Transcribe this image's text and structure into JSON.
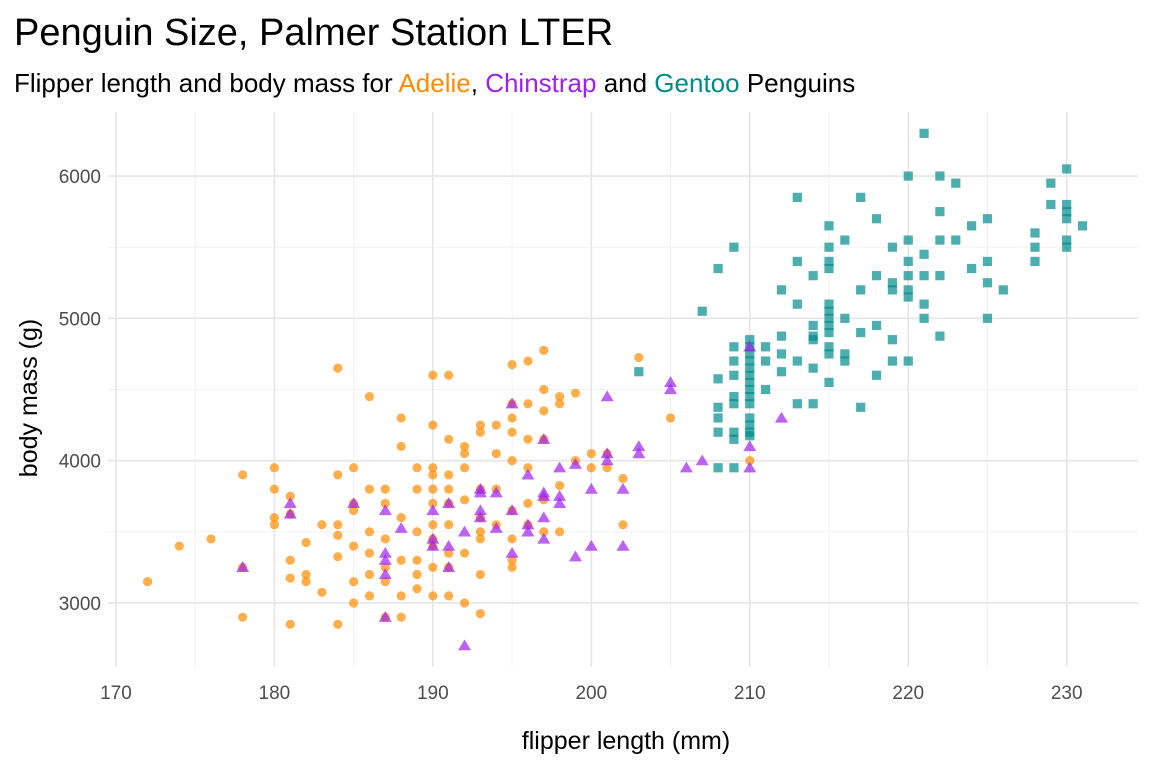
{
  "chart_data": {
    "type": "scatter",
    "title": "Penguin Size, Palmer Station LTER",
    "subtitle": {
      "prefix": "Flipper length and body mass for ",
      "sp1": "Adelie",
      "sep1": ", ",
      "sp2": "Chinstrap",
      "sep2": " and ",
      "sp3": "Gentoo",
      "suffix": " Penguins"
    },
    "xlabel": "flipper length (mm)",
    "ylabel": "body mass (g)",
    "xlim": [
      169.5,
      234.5
    ],
    "ylim": [
      2550,
      6450
    ],
    "xticks": [
      170,
      180,
      190,
      200,
      210,
      220,
      230
    ],
    "yticks": [
      3000,
      4000,
      5000,
      6000
    ],
    "grid": true,
    "legend": "none",
    "series": [
      {
        "name": "Adelie",
        "color": "#FF8C00",
        "shape": "circle",
        "points": [
          [
            172,
            3150
          ],
          [
            174,
            3400
          ],
          [
            176,
            3450
          ],
          [
            178,
            3900
          ],
          [
            178,
            2900
          ],
          [
            178,
            3250
          ],
          [
            180,
            3950
          ],
          [
            180,
            3800
          ],
          [
            180,
            3600
          ],
          [
            180,
            3550
          ],
          [
            181,
            3750
          ],
          [
            181,
            3625
          ],
          [
            181,
            3300
          ],
          [
            181,
            3175
          ],
          [
            181,
            2850
          ],
          [
            182,
            3425
          ],
          [
            182,
            3200
          ],
          [
            182,
            3150
          ],
          [
            183,
            3550
          ],
          [
            183,
            3075
          ],
          [
            184,
            4650
          ],
          [
            184,
            3900
          ],
          [
            184,
            3550
          ],
          [
            184,
            3475
          ],
          [
            184,
            3325
          ],
          [
            184,
            2850
          ],
          [
            185,
            3950
          ],
          [
            185,
            3700
          ],
          [
            185,
            3650
          ],
          [
            185,
            3400
          ],
          [
            185,
            3150
          ],
          [
            185,
            3000
          ],
          [
            186,
            4450
          ],
          [
            186,
            3800
          ],
          [
            186,
            3500
          ],
          [
            186,
            3350
          ],
          [
            186,
            3200
          ],
          [
            186,
            3050
          ],
          [
            187,
            3800
          ],
          [
            187,
            3700
          ],
          [
            187,
            3450
          ],
          [
            187,
            3250
          ],
          [
            187,
            3150
          ],
          [
            187,
            2900
          ],
          [
            188,
            4300
          ],
          [
            188,
            4100
          ],
          [
            188,
            3600
          ],
          [
            188,
            3300
          ],
          [
            188,
            3050
          ],
          [
            188,
            2900
          ],
          [
            189,
            3950
          ],
          [
            189,
            3800
          ],
          [
            189,
            3500
          ],
          [
            189,
            3300
          ],
          [
            189,
            3200
          ],
          [
            189,
            3100
          ],
          [
            190,
            4600
          ],
          [
            190,
            4250
          ],
          [
            190,
            3950
          ],
          [
            190,
            3900
          ],
          [
            190,
            3800
          ],
          [
            190,
            3700
          ],
          [
            190,
            3550
          ],
          [
            190,
            3450
          ],
          [
            190,
            3400
          ],
          [
            190,
            3250
          ],
          [
            190,
            3050
          ],
          [
            191,
            4600
          ],
          [
            191,
            4150
          ],
          [
            191,
            3900
          ],
          [
            191,
            3800
          ],
          [
            191,
            3700
          ],
          [
            191,
            3550
          ],
          [
            191,
            3350
          ],
          [
            191,
            3250
          ],
          [
            191,
            3050
          ],
          [
            192,
            4100
          ],
          [
            192,
            4050
          ],
          [
            192,
            3950
          ],
          [
            192,
            3725
          ],
          [
            192,
            3350
          ],
          [
            192,
            3000
          ],
          [
            193,
            4250
          ],
          [
            193,
            4200
          ],
          [
            193,
            3800
          ],
          [
            193,
            3600
          ],
          [
            193,
            3500
          ],
          [
            193,
            3450
          ],
          [
            193,
            3200
          ],
          [
            193,
            2925
          ],
          [
            194,
            4250
          ],
          [
            194,
            4050
          ],
          [
            194,
            3800
          ],
          [
            194,
            3550
          ],
          [
            195,
            4675
          ],
          [
            195,
            4400
          ],
          [
            195,
            4300
          ],
          [
            195,
            4200
          ],
          [
            195,
            4000
          ],
          [
            195,
            3650
          ],
          [
            195,
            3450
          ],
          [
            195,
            3300
          ],
          [
            195,
            3250
          ],
          [
            196,
            4700
          ],
          [
            196,
            4400
          ],
          [
            196,
            4150
          ],
          [
            196,
            3950
          ],
          [
            196,
            3700
          ],
          [
            196,
            3550
          ],
          [
            197,
            4775
          ],
          [
            197,
            4500
          ],
          [
            197,
            4350
          ],
          [
            197,
            4150
          ],
          [
            197,
            3725
          ],
          [
            197,
            3500
          ],
          [
            198,
            4450
          ],
          [
            198,
            4400
          ],
          [
            198,
            3825
          ],
          [
            198,
            3500
          ],
          [
            199,
            4475
          ],
          [
            199,
            4000
          ],
          [
            200,
            4050
          ],
          [
            200,
            3950
          ],
          [
            201,
            4050
          ],
          [
            201,
            3950
          ],
          [
            202,
            3875
          ],
          [
            202,
            3550
          ],
          [
            203,
            4725
          ],
          [
            205,
            4300
          ],
          [
            210,
            4000
          ]
        ]
      },
      {
        "name": "Chinstrap",
        "color": "#A020F0",
        "shape": "triangle",
        "points": [
          [
            178,
            3250
          ],
          [
            181,
            3700
          ],
          [
            181,
            3625
          ],
          [
            185,
            3700
          ],
          [
            187,
            3650
          ],
          [
            187,
            3350
          ],
          [
            187,
            3300
          ],
          [
            187,
            3200
          ],
          [
            187,
            2900
          ],
          [
            188,
            3525
          ],
          [
            190,
            3650
          ],
          [
            190,
            3450
          ],
          [
            190,
            3400
          ],
          [
            191,
            3700
          ],
          [
            191,
            3400
          ],
          [
            191,
            3250
          ],
          [
            192,
            3500
          ],
          [
            192,
            2700
          ],
          [
            193,
            3800
          ],
          [
            193,
            3775
          ],
          [
            193,
            3650
          ],
          [
            193,
            3600
          ],
          [
            194,
            3775
          ],
          [
            194,
            3525
          ],
          [
            195,
            4400
          ],
          [
            195,
            3650
          ],
          [
            195,
            3350
          ],
          [
            196,
            3900
          ],
          [
            196,
            3550
          ],
          [
            196,
            3500
          ],
          [
            197,
            4150
          ],
          [
            197,
            3775
          ],
          [
            197,
            3750
          ],
          [
            197,
            3600
          ],
          [
            197,
            3450
          ],
          [
            198,
            3950
          ],
          [
            198,
            3750
          ],
          [
            198,
            3700
          ],
          [
            199,
            3975
          ],
          [
            199,
            3325
          ],
          [
            200,
            3800
          ],
          [
            200,
            3400
          ],
          [
            201,
            4450
          ],
          [
            201,
            4050
          ],
          [
            201,
            4000
          ],
          [
            202,
            3800
          ],
          [
            202,
            3400
          ],
          [
            203,
            4100
          ],
          [
            203,
            4050
          ],
          [
            205,
            4550
          ],
          [
            205,
            4500
          ],
          [
            206,
            3950
          ],
          [
            207,
            4000
          ],
          [
            210,
            4800
          ],
          [
            210,
            4100
          ],
          [
            210,
            3950
          ],
          [
            212,
            4300
          ]
        ]
      },
      {
        "name": "Gentoo",
        "color": "#008B8B",
        "shape": "square",
        "points": [
          [
            203,
            4625
          ],
          [
            207,
            5050
          ],
          [
            208,
            5350
          ],
          [
            208,
            4575
          ],
          [
            208,
            4375
          ],
          [
            208,
            4300
          ],
          [
            208,
            4200
          ],
          [
            208,
            3950
          ],
          [
            209,
            5500
          ],
          [
            209,
            4800
          ],
          [
            209,
            4700
          ],
          [
            209,
            4600
          ],
          [
            209,
            4450
          ],
          [
            209,
            4400
          ],
          [
            209,
            4200
          ],
          [
            209,
            4150
          ],
          [
            209,
            3950
          ],
          [
            210,
            4850
          ],
          [
            210,
            4800
          ],
          [
            210,
            4750
          ],
          [
            210,
            4700
          ],
          [
            210,
            4650
          ],
          [
            210,
            4600
          ],
          [
            210,
            4550
          ],
          [
            210,
            4500
          ],
          [
            210,
            4450
          ],
          [
            210,
            4400
          ],
          [
            210,
            4300
          ],
          [
            210,
            4250
          ],
          [
            210,
            4200
          ],
          [
            210,
            4175
          ],
          [
            211,
            4800
          ],
          [
            211,
            4700
          ],
          [
            211,
            4500
          ],
          [
            212,
            5200
          ],
          [
            212,
            4875
          ],
          [
            212,
            4750
          ],
          [
            212,
            4625
          ],
          [
            213,
            5850
          ],
          [
            213,
            5400
          ],
          [
            213,
            5100
          ],
          [
            213,
            4700
          ],
          [
            213,
            4400
          ],
          [
            214,
            5300
          ],
          [
            214,
            4950
          ],
          [
            214,
            4875
          ],
          [
            214,
            4850
          ],
          [
            214,
            4650
          ],
          [
            214,
            4400
          ],
          [
            215,
            5650
          ],
          [
            215,
            5500
          ],
          [
            215,
            5400
          ],
          [
            215,
            5350
          ],
          [
            215,
            5100
          ],
          [
            215,
            5050
          ],
          [
            215,
            5000
          ],
          [
            215,
            4950
          ],
          [
            215,
            4900
          ],
          [
            215,
            4800
          ],
          [
            215,
            4750
          ],
          [
            215,
            4550
          ],
          [
            216,
            5550
          ],
          [
            216,
            5000
          ],
          [
            216,
            4750
          ],
          [
            216,
            4700
          ],
          [
            217,
            5850
          ],
          [
            217,
            5200
          ],
          [
            217,
            4900
          ],
          [
            217,
            4375
          ],
          [
            218,
            5700
          ],
          [
            218,
            5300
          ],
          [
            218,
            4950
          ],
          [
            218,
            4600
          ],
          [
            219,
            5500
          ],
          [
            219,
            5250
          ],
          [
            219,
            5200
          ],
          [
            219,
            4850
          ],
          [
            219,
            4700
          ],
          [
            220,
            6000
          ],
          [
            220,
            5550
          ],
          [
            220,
            5400
          ],
          [
            220,
            5300
          ],
          [
            220,
            5200
          ],
          [
            220,
            5150
          ],
          [
            220,
            4700
          ],
          [
            221,
            6300
          ],
          [
            221,
            5450
          ],
          [
            221,
            5300
          ],
          [
            221,
            5100
          ],
          [
            221,
            5000
          ],
          [
            222,
            6000
          ],
          [
            222,
            5750
          ],
          [
            222,
            5550
          ],
          [
            222,
            5300
          ],
          [
            222,
            4875
          ],
          [
            223,
            5950
          ],
          [
            223,
            5550
          ],
          [
            224,
            5650
          ],
          [
            224,
            5350
          ],
          [
            225,
            5700
          ],
          [
            225,
            5400
          ],
          [
            225,
            5250
          ],
          [
            225,
            5000
          ],
          [
            226,
            5200
          ],
          [
            228,
            5600
          ],
          [
            228,
            5500
          ],
          [
            228,
            5400
          ],
          [
            229,
            5950
          ],
          [
            229,
            5800
          ],
          [
            230,
            6050
          ],
          [
            230,
            5800
          ],
          [
            230,
            5750
          ],
          [
            230,
            5700
          ],
          [
            230,
            5550
          ],
          [
            230,
            5500
          ],
          [
            231,
            5650
          ]
        ]
      }
    ]
  },
  "colors": {
    "adelie": "#FF8C00",
    "chinstrap": "#A020F0",
    "gentoo": "#008B8B",
    "grid_major": "#e6e6e6",
    "grid_minor": "#f2f2f2",
    "tick_label": "#4d4d4d"
  }
}
